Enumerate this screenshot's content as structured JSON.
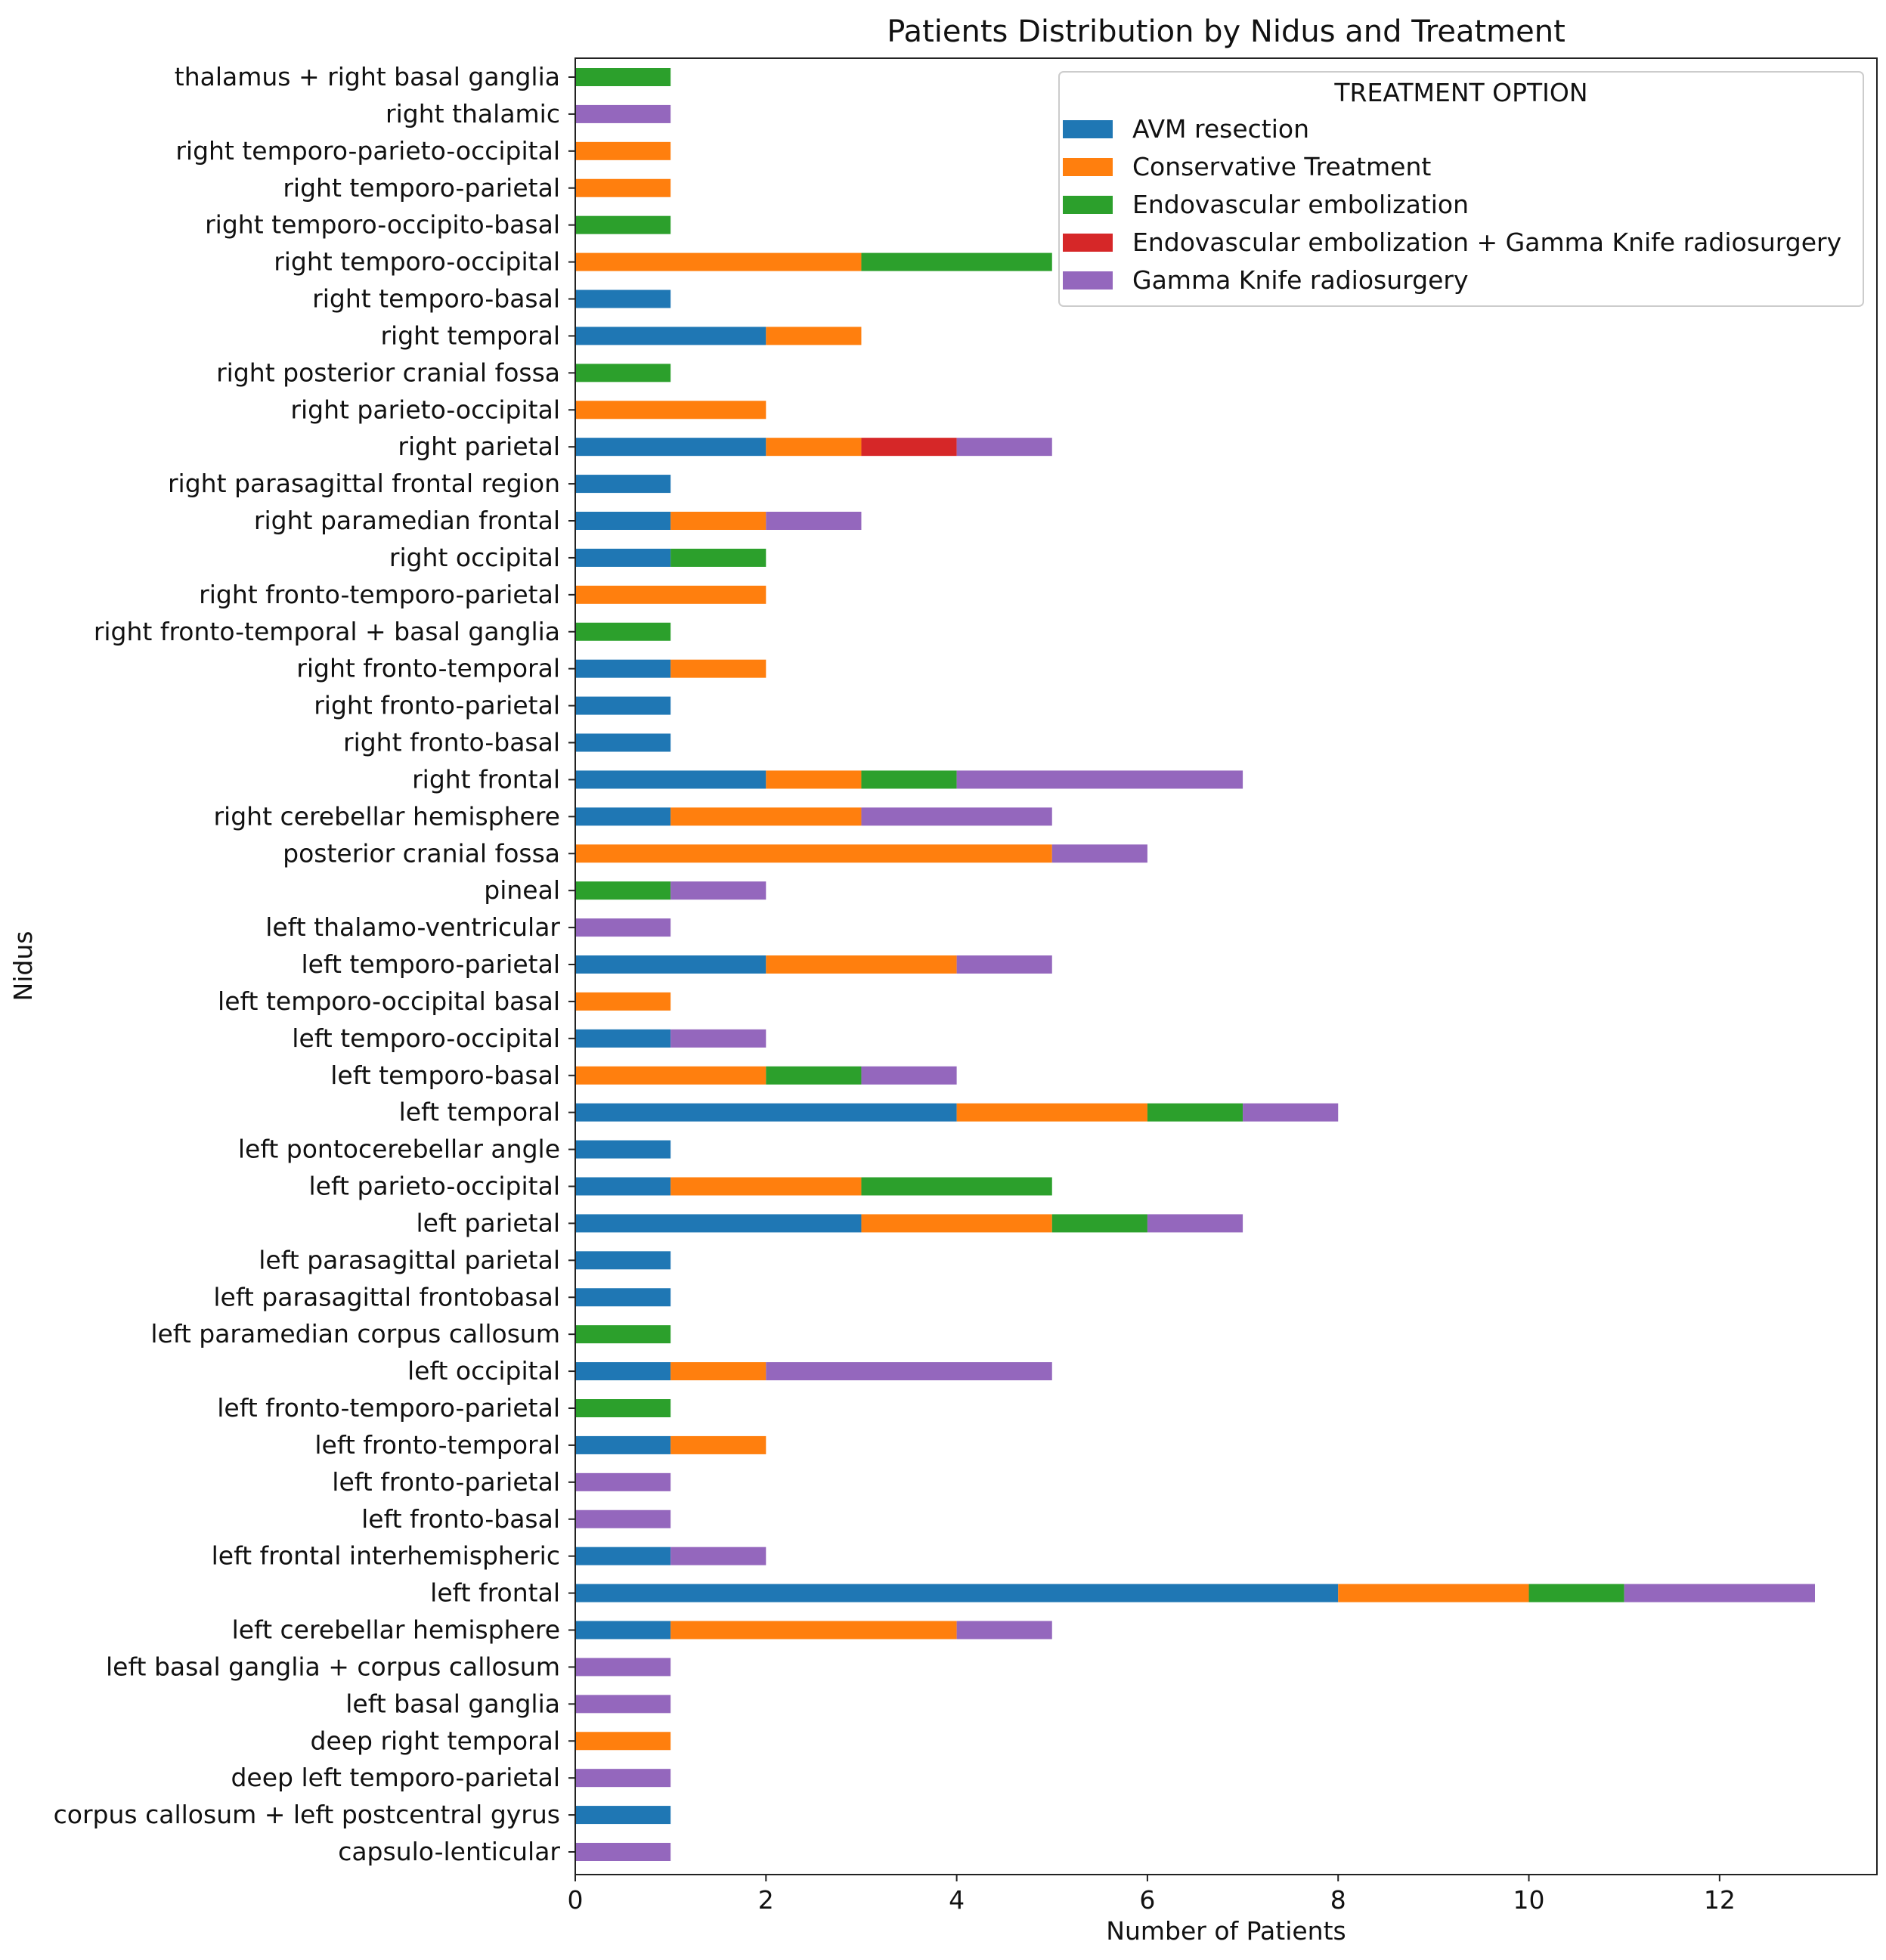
{
  "chart_data": {
    "type": "bar",
    "orientation": "horizontal",
    "stacked": true,
    "title": "Patients Distribution by Nidus and Treatment",
    "xlabel": "Number of Patients",
    "ylabel": "Nidus",
    "xlim": [
      0,
      13.65
    ],
    "xticks": [
      "0",
      "2",
      "4",
      "6",
      "8",
      "10",
      "12"
    ],
    "grid": false,
    "legend": {
      "title": "TREATMENT OPTION",
      "position": "top-right"
    },
    "categories": [
      "capsulo-lenticular",
      "corpus callosum + left postcentral gyrus",
      "deep left temporo-parietal",
      "deep right temporal",
      "left basal ganglia",
      "left basal ganglia + corpus callosum",
      "left cerebellar hemisphere",
      "left frontal",
      "left frontal interhemispheric",
      "left fronto-basal",
      "left fronto-parietal",
      "left fronto-temporal",
      "left fronto-temporo-parietal",
      "left occipital",
      "left paramedian corpus callosum",
      "left parasagittal frontobasal",
      "left parasagittal parietal",
      "left parietal",
      "left parieto-occipital",
      "left pontocerebellar angle",
      "left temporal",
      "left temporo-basal",
      "left temporo-occipital",
      "left temporo-occipital basal",
      "left temporo-parietal",
      "left thalamo-ventricular",
      "pineal",
      "posterior cranial fossa",
      "right cerebellar hemisphere",
      "right frontal",
      "right fronto-basal",
      "right fronto-parietal",
      "right fronto-temporal",
      "right fronto-temporal + basal ganglia",
      "right fronto-temporo-parietal",
      "right occipital",
      "right paramedian frontal",
      "right parasagittal frontal region",
      "right parietal",
      "right parieto-occipital",
      "right posterior cranial fossa",
      "right temporal",
      "right temporo-basal",
      "right temporo-occipital",
      "right temporo-occipito-basal",
      "right temporo-parietal",
      "right temporo-parieto-occipital",
      "right thalamic",
      "thalamus + right basal ganglia"
    ],
    "series": [
      {
        "name": "AVM resection",
        "color": "#1f77b4",
        "values": [
          0,
          1,
          0,
          0,
          0,
          0,
          1,
          8,
          1,
          0,
          0,
          1,
          0,
          1,
          0,
          1,
          1,
          3,
          1,
          1,
          4,
          0,
          1,
          0,
          2,
          0,
          0,
          0,
          1,
          2,
          1,
          1,
          1,
          0,
          0,
          1,
          1,
          1,
          2,
          0,
          0,
          2,
          1,
          0,
          0,
          0,
          0,
          0,
          0
        ]
      },
      {
        "name": "Conservative Treatment",
        "color": "#ff7f0e",
        "values": [
          0,
          0,
          0,
          1,
          0,
          0,
          3,
          2,
          0,
          0,
          0,
          1,
          0,
          1,
          0,
          0,
          0,
          2,
          2,
          0,
          2,
          2,
          0,
          1,
          2,
          0,
          0,
          5,
          2,
          1,
          0,
          0,
          1,
          0,
          2,
          0,
          1,
          0,
          1,
          2,
          0,
          1,
          0,
          3,
          0,
          1,
          1,
          0,
          0
        ]
      },
      {
        "name": "Endovascular embolization",
        "color": "#2ca02c",
        "values": [
          0,
          0,
          0,
          0,
          0,
          0,
          0,
          1,
          0,
          0,
          0,
          0,
          1,
          0,
          1,
          0,
          0,
          1,
          2,
          0,
          1,
          1,
          0,
          0,
          0,
          0,
          1,
          0,
          0,
          1,
          0,
          0,
          0,
          1,
          0,
          1,
          0,
          0,
          0,
          0,
          1,
          0,
          0,
          2,
          1,
          0,
          0,
          0,
          1
        ]
      },
      {
        "name": "Endovascular embolization + Gamma Knife radiosurgery",
        "color": "#d62728",
        "values": [
          0,
          0,
          0,
          0,
          0,
          0,
          0,
          0,
          0,
          0,
          0,
          0,
          0,
          0,
          0,
          0,
          0,
          0,
          0,
          0,
          0,
          0,
          0,
          0,
          0,
          0,
          0,
          0,
          0,
          0,
          0,
          0,
          0,
          0,
          0,
          0,
          0,
          0,
          1,
          0,
          0,
          0,
          0,
          0,
          0,
          0,
          0,
          0,
          0
        ]
      },
      {
        "name": "Gamma Knife radiosurgery",
        "color": "#9467bd",
        "values": [
          1,
          0,
          1,
          0,
          1,
          1,
          1,
          2,
          1,
          1,
          1,
          0,
          0,
          3,
          0,
          0,
          0,
          1,
          0,
          0,
          1,
          1,
          1,
          0,
          1,
          1,
          1,
          1,
          2,
          3,
          0,
          0,
          0,
          0,
          0,
          0,
          1,
          0,
          1,
          0,
          0,
          0,
          0,
          0,
          0,
          0,
          0,
          1,
          0
        ]
      }
    ]
  }
}
